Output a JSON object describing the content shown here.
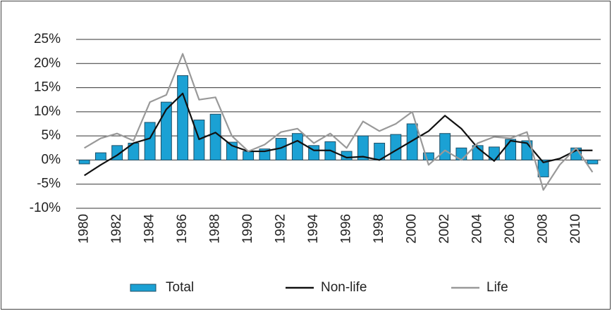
{
  "chart_data": {
    "type": "combo",
    "categories": [
      "1980",
      null,
      "1982",
      null,
      "1984",
      null,
      "1986",
      null,
      "1988",
      null,
      "1990",
      null,
      "1992",
      null,
      "1994",
      null,
      "1996",
      null,
      "1998",
      null,
      "2000",
      null,
      "2002",
      null,
      "2004",
      null,
      "2006",
      null,
      "2008",
      null,
      "2010",
      null
    ],
    "series": [
      {
        "name": "Total",
        "type": "bar",
        "color": "#1ba1d4",
        "values": [
          -0.8,
          1.5,
          3,
          3.5,
          7.8,
          12,
          17.5,
          8.3,
          9.5,
          3.7,
          1.8,
          2.3,
          4.5,
          5.5,
          3,
          3.8,
          1.8,
          5,
          3.5,
          5.3,
          7.5,
          1.5,
          5.5,
          2.5,
          3,
          2.7,
          4.3,
          4,
          -3.5,
          0,
          2.5,
          -0.8
        ]
      },
      {
        "name": "Non-life",
        "type": "line",
        "color": "#111111",
        "values": [
          -3.2,
          -1,
          1,
          3.5,
          4.5,
          10.5,
          13.8,
          4.3,
          5.7,
          3,
          1.8,
          1.8,
          2.5,
          4,
          2,
          2,
          0.5,
          0.7,
          0,
          2,
          4,
          6,
          9.2,
          6.5,
          2.5,
          -0.2,
          4,
          3.5,
          -0.5,
          0.3,
          2,
          2
        ]
      },
      {
        "name": "Life",
        "type": "line",
        "color": "#999999",
        "values": [
          2.5,
          4.5,
          5.5,
          4,
          12,
          13.5,
          22,
          12.5,
          13,
          5,
          1.8,
          3.2,
          5.8,
          6.5,
          3.5,
          5.5,
          2.5,
          8,
          6,
          7.5,
          10,
          -1,
          2,
          0,
          3.5,
          4.8,
          4.5,
          5.8,
          -6.2,
          -1,
          2.5,
          -2.5
        ]
      }
    ],
    "ylim": [
      -10,
      25
    ],
    "yticks": [
      {
        "value": -10,
        "label": "-10%"
      },
      {
        "value": -5,
        "label": "-5%"
      },
      {
        "value": 0,
        "label": "0%"
      },
      {
        "value": 5,
        "label": "5%"
      },
      {
        "value": 10,
        "label": "10%"
      },
      {
        "value": 15,
        "label": "15%"
      },
      {
        "value": 20,
        "label": "20%"
      },
      {
        "value": 25,
        "label": "25%"
      }
    ],
    "grid": true
  }
}
